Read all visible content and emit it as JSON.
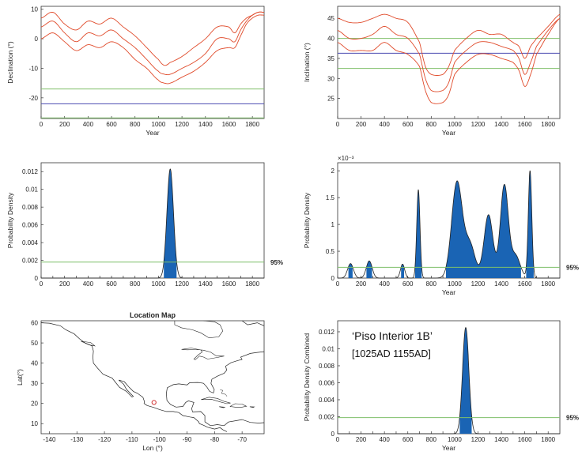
{
  "chart_data": [
    {
      "id": "declination",
      "type": "line",
      "ylabel": "Declination (°)",
      "xlabel": "Year",
      "xlim": [
        0,
        1900
      ],
      "ylim": [
        -27,
        11
      ],
      "xticks": [
        0,
        200,
        400,
        600,
        800,
        1000,
        1200,
        1400,
        1600,
        1800
      ],
      "yticks": [
        -20,
        -10,
        0,
        10
      ],
      "curve": {
        "x": [
          0,
          100,
          200,
          300,
          400,
          500,
          600,
          700,
          800,
          900,
          1000,
          1050,
          1100,
          1200,
          1300,
          1400,
          1500,
          1600,
          1650,
          1700,
          1750,
          1800,
          1850,
          1900
        ],
        "mean": [
          4,
          6,
          2,
          -1,
          2,
          1,
          3,
          0,
          -3,
          -7,
          -11,
          -12,
          -12,
          -10,
          -8,
          -5,
          0,
          0,
          -1,
          3,
          6,
          8,
          9,
          9
        ],
        "upper": [
          7,
          9,
          5,
          3,
          6,
          5,
          7,
          4,
          1,
          -3,
          -7,
          -9,
          -8,
          -6,
          -3,
          0,
          4,
          4,
          2,
          5,
          7,
          8,
          9,
          9
        ],
        "lower": [
          0,
          2,
          -1,
          -4,
          -2,
          -3,
          -1,
          -3,
          -7,
          -10,
          -14,
          -15,
          -15,
          -13,
          -11,
          -8,
          -4,
          -3,
          -3,
          1,
          5,
          7,
          8,
          8
        ]
      },
      "hlines": [
        {
          "name": "upper-limit",
          "y": -17,
          "color": "#7fbf6a"
        },
        {
          "name": "site-value",
          "y": -22,
          "color": "#4a4ab0"
        },
        {
          "name": "lower-limit",
          "y": -26.8,
          "color": "#7fbf6a"
        }
      ],
      "curve_color": "#e04a2a"
    },
    {
      "id": "inclination",
      "type": "line",
      "ylabel": "Inclination (°)",
      "xlabel": "Year",
      "xlim": [
        0,
        1900
      ],
      "ylim": [
        20,
        48
      ],
      "xticks": [
        0,
        200,
        400,
        600,
        800,
        1000,
        1200,
        1400,
        1600,
        1800
      ],
      "yticks": [
        25,
        30,
        35,
        40,
        45
      ],
      "curve": {
        "x": [
          0,
          100,
          200,
          300,
          400,
          500,
          600,
          700,
          750,
          800,
          900,
          950,
          1000,
          1100,
          1200,
          1300,
          1400,
          1500,
          1550,
          1600,
          1650,
          1700,
          1800,
          1900
        ],
        "mean": [
          42,
          40,
          40,
          41,
          43,
          41,
          40,
          36,
          30,
          27,
          27,
          29,
          34,
          37,
          39,
          39,
          38,
          37,
          35,
          31,
          34,
          38,
          42,
          45
        ],
        "upper": [
          45,
          44,
          44,
          45,
          46,
          45,
          44,
          39,
          33,
          31,
          31,
          33,
          37,
          40,
          42,
          41,
          41,
          39,
          38,
          35,
          38,
          40,
          43,
          46
        ],
        "lower": [
          39,
          37,
          37,
          37,
          39,
          37,
          36,
          33,
          27,
          24,
          24,
          26,
          31,
          34,
          36,
          36,
          35,
          34,
          32,
          28,
          31,
          36,
          41,
          45
        ]
      },
      "hlines": [
        {
          "name": "upper-limit",
          "y": 40,
          "color": "#7fbf6a"
        },
        {
          "name": "site-value",
          "y": 36.3,
          "color": "#4a4ab0"
        },
        {
          "name": "lower-limit",
          "y": 32.5,
          "color": "#7fbf6a"
        }
      ],
      "curve_color": "#e04a2a"
    },
    {
      "id": "declination-density",
      "type": "area",
      "ylabel": "Probability Density",
      "xlabel": "",
      "xlim": [
        0,
        1900
      ],
      "ylim": [
        0,
        0.013
      ],
      "xticks": [
        0,
        100,
        200,
        300,
        400,
        500,
        600,
        700,
        800,
        900,
        1000,
        1100,
        1200,
        1300,
        1400,
        1500,
        1600,
        1700,
        1800
      ],
      "yticks": [
        0,
        0.002,
        0.004,
        0.006,
        0.008,
        0.01,
        0.012
      ],
      "ytick_labels": [
        "0",
        "0.002",
        "0.004",
        "0.006",
        "0.008",
        "0.01",
        "0.012"
      ],
      "peaks": [
        {
          "center": 1100,
          "sigma": 28,
          "height": 0.0123
        }
      ],
      "threshold": 0.0018,
      "threshold_label": "95%",
      "fill_color": "#1a64b4"
    },
    {
      "id": "inclination-density",
      "type": "area",
      "ylabel": "Probability Density",
      "xlabel": "Year",
      "exponent_label": "×10⁻³",
      "xlim": [
        0,
        1900
      ],
      "ylim": [
        0,
        0.00215
      ],
      "xticks": [
        0,
        100,
        200,
        300,
        400,
        500,
        600,
        700,
        800,
        900,
        1000,
        1100,
        1200,
        1300,
        1400,
        1500,
        1600,
        1700,
        1800
      ],
      "yticks": [
        0,
        0.0005,
        0.001,
        0.0015,
        0.002
      ],
      "ytick_labels": [
        "0",
        "0.5",
        "1",
        "1.5",
        "2"
      ],
      "peaks": [
        {
          "center": 110,
          "sigma": 25,
          "height": 0.00027
        },
        {
          "center": 270,
          "sigma": 25,
          "height": 0.00032
        },
        {
          "center": 555,
          "sigma": 18,
          "height": 0.00026
        },
        {
          "center": 690,
          "sigma": 14,
          "height": 0.00165
        },
        {
          "center": 1020,
          "sigma": 45,
          "height": 0.00178
        },
        {
          "center": 1130,
          "sigma": 45,
          "height": 0.00062
        },
        {
          "center": 1290,
          "sigma": 38,
          "height": 0.00118
        },
        {
          "center": 1425,
          "sigma": 34,
          "height": 0.00172
        },
        {
          "center": 1520,
          "sigma": 40,
          "height": 0.00042
        },
        {
          "center": 1645,
          "sigma": 15,
          "height": 0.002
        }
      ],
      "threshold": 0.0002,
      "threshold_label": "95%",
      "fill_color": "#1a64b4"
    },
    {
      "id": "location-map",
      "type": "other",
      "title": "Location Map",
      "ylabel": "Lat(°)",
      "xlabel": "Lon (°)",
      "xlim": [
        -143,
        -62
      ],
      "ylim": [
        5,
        61
      ],
      "xticks": [
        -140,
        -130,
        -120,
        -110,
        -100,
        -90,
        -80,
        -70
      ],
      "yticks": [
        10,
        20,
        30,
        40,
        50,
        60
      ],
      "site": {
        "lon": -102,
        "lat": 20.5
      }
    },
    {
      "id": "combined-density",
      "type": "area",
      "ylabel": "Probability Density Combined",
      "xlabel": "Year",
      "xlim": [
        0,
        1900
      ],
      "ylim": [
        0,
        0.0133
      ],
      "xticks": [
        0,
        100,
        200,
        300,
        400,
        500,
        600,
        700,
        800,
        900,
        1000,
        1100,
        1200,
        1300,
        1400,
        1500,
        1600,
        1700,
        1800
      ],
      "yticks": [
        0,
        0.002,
        0.004,
        0.006,
        0.008,
        0.01,
        0.012
      ],
      "ytick_labels": [
        "0",
        "0.002",
        "0.004",
        "0.006",
        "0.008",
        "0.01",
        "0.012"
      ],
      "peaks": [
        {
          "center": 1095,
          "sigma": 27,
          "height": 0.0125
        }
      ],
      "threshold": 0.0019,
      "threshold_label": "95%",
      "fill_color": "#1a64b4",
      "annotation_title": "‘Piso Interior 1B’",
      "annotation_range": "[1025AD   1155AD]"
    }
  ]
}
